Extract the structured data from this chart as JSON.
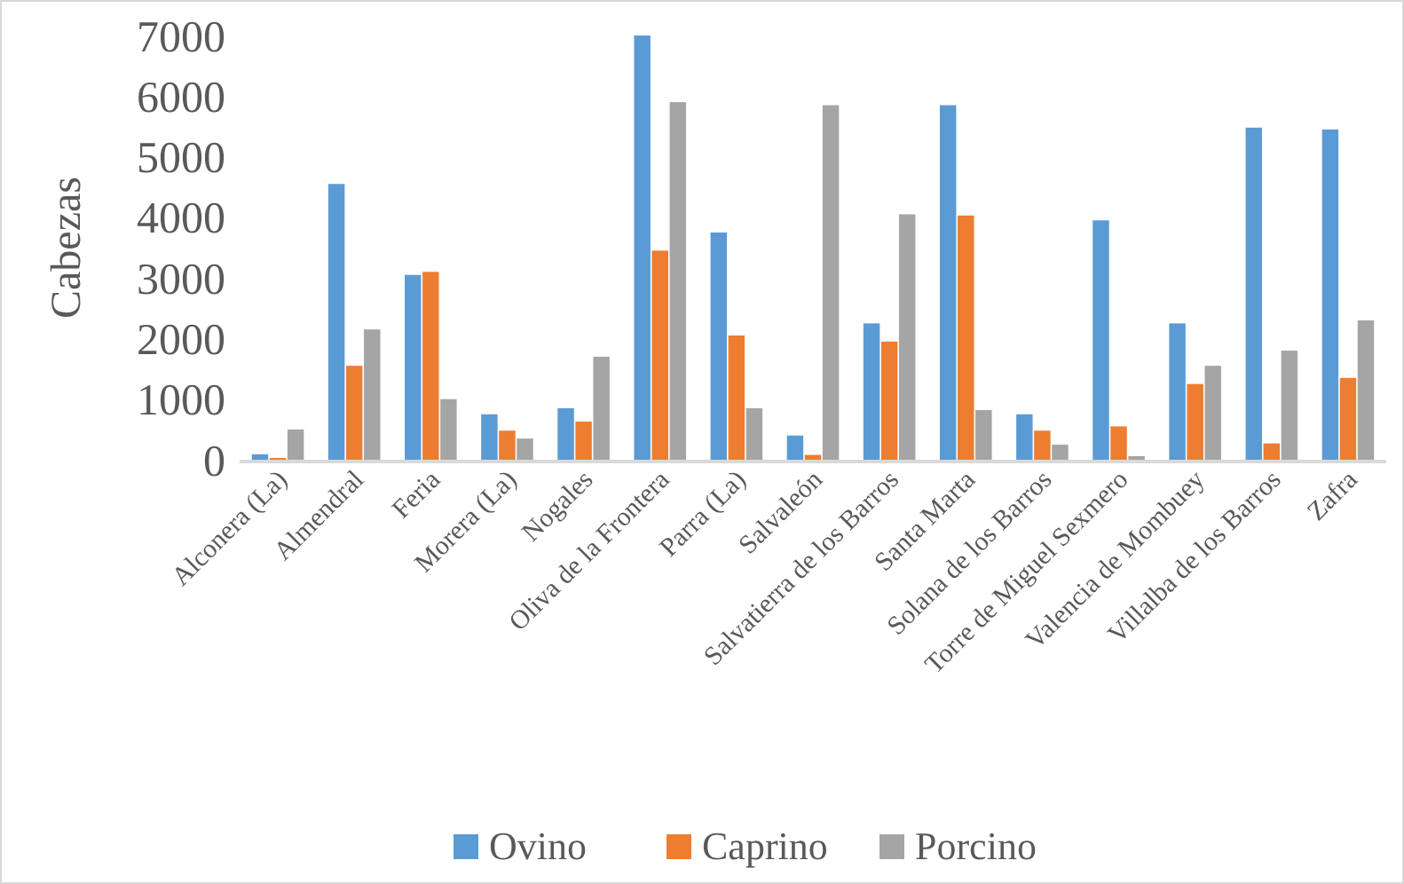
{
  "chart_data": {
    "type": "bar",
    "ylabel": "Cabezas",
    "categories": [
      "Alconera (La)",
      "Almendral",
      "Feria",
      "Morera (La)",
      "Nogales",
      "Oliva de la Frontera",
      "Parra (La)",
      "Salvaleón",
      "Salvatierra de los Barros",
      "Santa Marta",
      "Solana de los Barros",
      "Torre de Miguel Sexmero",
      "Valencia de Mombuey",
      "Villalba de los Barros",
      "Zafra"
    ],
    "series": [
      {
        "name": "Ovino",
        "color": "#5b9bd5",
        "values": [
          90,
          4550,
          3050,
          750,
          850,
          7000,
          3750,
          400,
          2250,
          5850,
          750,
          3950,
          2250,
          5480,
          5450
        ]
      },
      {
        "name": "Caprino",
        "color": "#ed7d31",
        "values": [
          30,
          1550,
          3100,
          480,
          630,
          3450,
          2050,
          80,
          1950,
          4030,
          480,
          550,
          1250,
          270,
          1350
        ]
      },
      {
        "name": "Porcino",
        "color": "#a5a5a5",
        "values": [
          500,
          2150,
          1000,
          350,
          1700,
          5900,
          850,
          5850,
          4050,
          820,
          250,
          60,
          1550,
          1800,
          2300
        ]
      }
    ],
    "ylim": [
      0,
      7000
    ],
    "yticks": [
      0,
      1000,
      2000,
      3000,
      4000,
      5000,
      6000,
      7000
    ],
    "grid": false,
    "legend": "bottom"
  }
}
